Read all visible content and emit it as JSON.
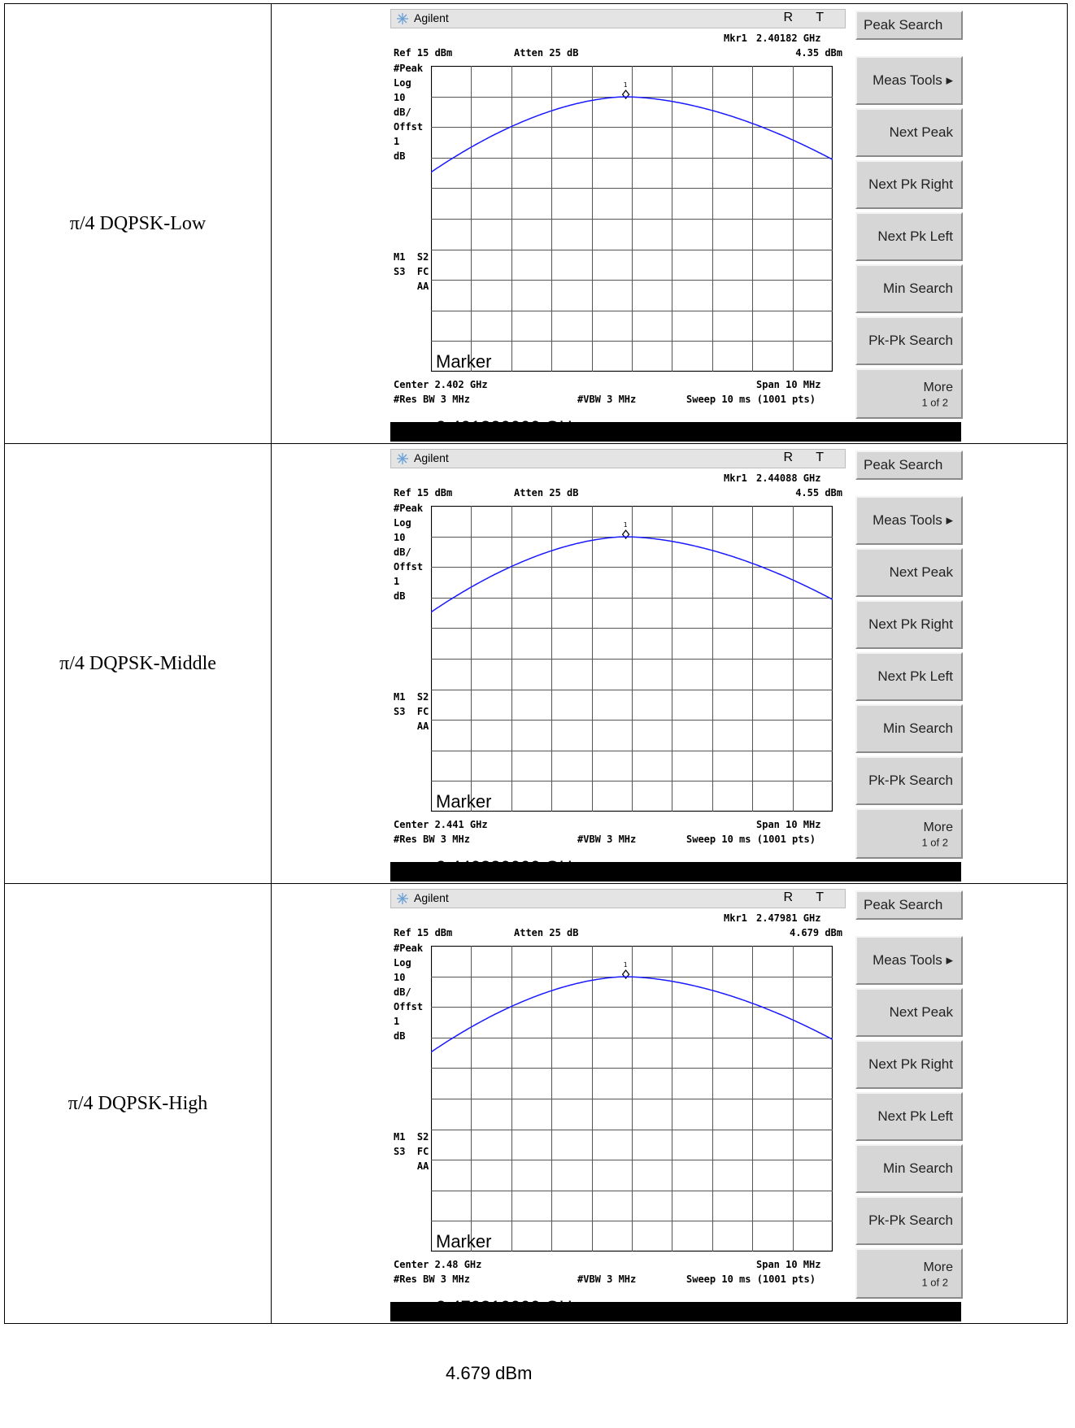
{
  "rows": [
    {
      "label": "π/4 DQPSK-Low",
      "mkr_label": "Mkr1",
      "mkr_freq": "2.40182 GHz",
      "mkr_level": "4.35 dBm",
      "marker_freq_full": "2.401820000 GHz",
      "marker_level_full": "4.35 dBm",
      "center": "Center 2.402 GHz",
      "peak_offset_divs": 0.0
    },
    {
      "label": "π/4 DQPSK-Middle",
      "mkr_label": "Mkr1",
      "mkr_freq": "2.44088 GHz",
      "mkr_level": "4.55 dBm",
      "marker_freq_full": "2.440880000 GHz",
      "marker_level_full": "4.55 dBm",
      "center": "Center 2.441 GHz",
      "peak_offset_divs": 0.0
    },
    {
      "label": "π/4 DQPSK-High",
      "mkr_label": "Mkr1",
      "mkr_freq": "2.47981 GHz",
      "mkr_level": "4.679 dBm",
      "marker_freq_full": "2.479810000 GHz",
      "marker_level_full": "4.679 dBm",
      "center": "Center 2.48 GHz",
      "peak_offset_divs": 0.0
    }
  ],
  "analyzer": {
    "brand": "Agilent",
    "rt": "R T",
    "ref": "Ref 15 dBm",
    "atten": "Atten 25 dB",
    "side_label": "#Peak\nLog\n10\ndB/\nOffst\n1\ndB",
    "side_label_2": "M1  S2\nS3  FC\n    AA",
    "marker_word": "Marker",
    "span": "Span 10 MHz",
    "res_bw": "#Res BW 3 MHz",
    "vbw": "#VBW 3 MHz",
    "sweep": "Sweep 10 ms (1001 pts)",
    "marker_index": "1",
    "trace_color": "#1a1aff"
  },
  "softkeys": [
    {
      "label": "Peak Search"
    },
    {
      "label": "Meas Tools ▸"
    },
    {
      "label": "Next Peak"
    },
    {
      "label": "Next Pk Right"
    },
    {
      "label": "Next Pk Left"
    },
    {
      "label": "Min Search"
    },
    {
      "label": "Pk-Pk Search"
    },
    {
      "label": "More",
      "sub": "1 of 2"
    }
  ]
}
